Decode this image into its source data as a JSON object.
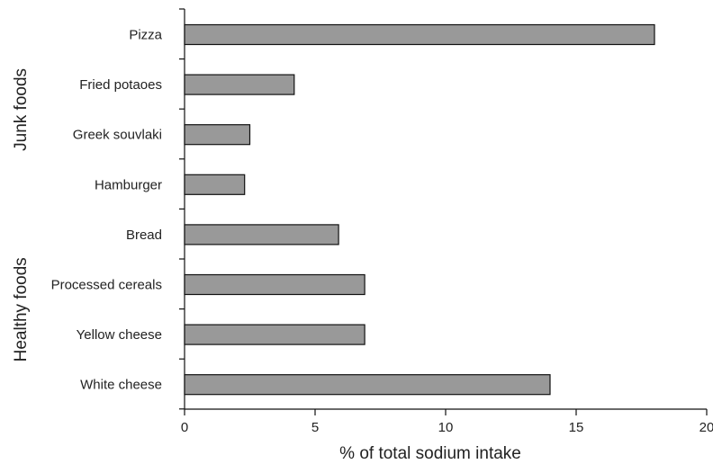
{
  "chart_data": {
    "type": "bar",
    "orientation": "horizontal",
    "title": "",
    "xlabel": "% of total sodium intake",
    "ylabel": "",
    "categories": [
      "Pizza",
      "Fried potaoes",
      "Greek souvlaki",
      "Hamburger",
      "Bread",
      "Processed cereals",
      "Yellow cheese",
      "White cheese"
    ],
    "values": [
      18,
      4.2,
      2.5,
      2.3,
      5.9,
      6.9,
      6.9,
      14
    ],
    "groups": [
      {
        "label": "Junk foods",
        "categories": [
          "Pizza",
          "Fried potaoes",
          "Greek souvlaki",
          "Hamburger"
        ]
      },
      {
        "label": "Healthy foods",
        "categories": [
          "Bread",
          "Processed cereals",
          "Yellow cheese",
          "White cheese"
        ]
      }
    ],
    "xlim": [
      0,
      20
    ],
    "xticks": [
      0,
      5,
      10,
      15,
      20
    ],
    "grid": false,
    "legend": "none",
    "colors": {
      "bar_fill": "#999999",
      "bar_stroke": "#111111",
      "axis": "#111111"
    }
  }
}
